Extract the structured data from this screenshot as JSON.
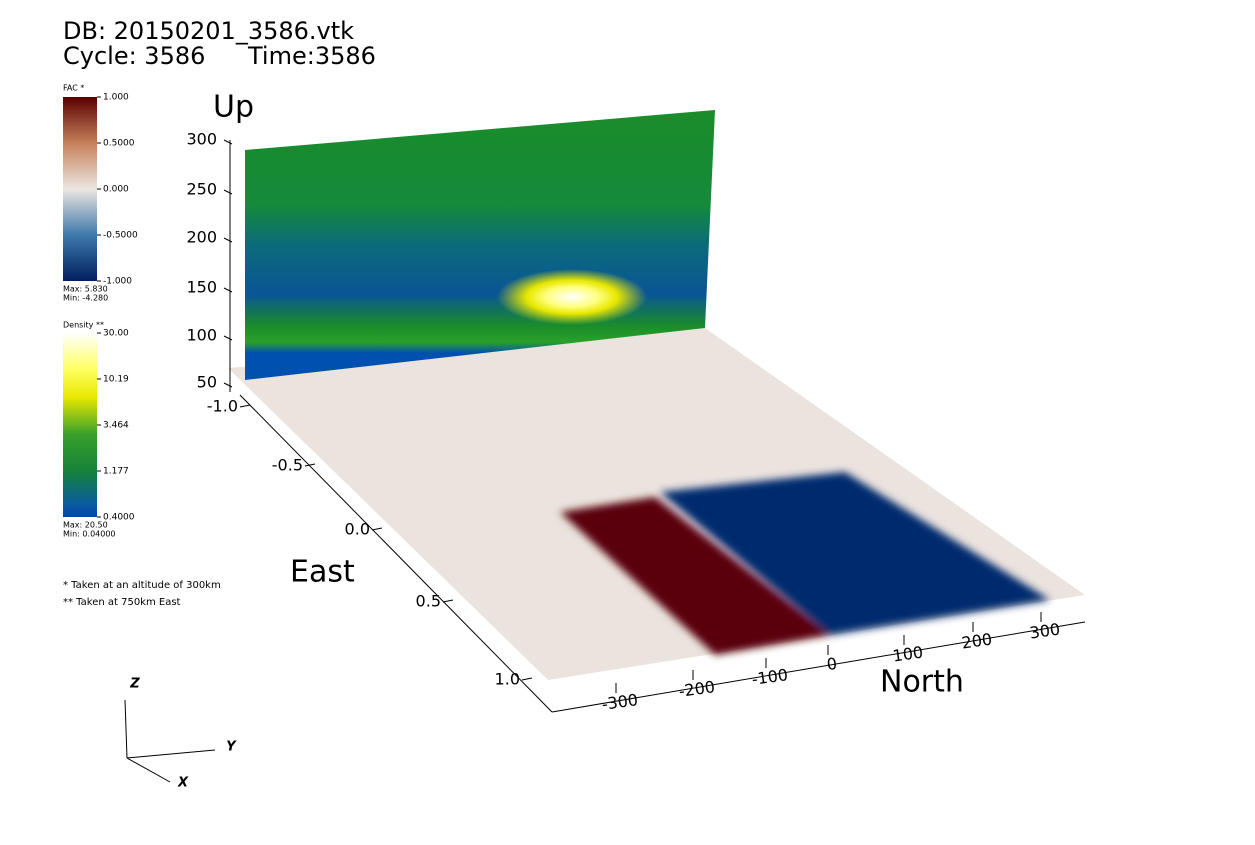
{
  "header": {
    "db": "DB: 20150201_3586.vtk",
    "cycle": "Cycle: 3586",
    "time": "Time:3586"
  },
  "fac_legend": {
    "title": "FAC *",
    "labels": [
      "1.000",
      "0.5000",
      "0.000",
      "-0.5000",
      "-1.000"
    ],
    "max": "Max:  5.830",
    "min": "Min:  -4.280"
  },
  "density_legend": {
    "title": "Density **",
    "labels": [
      "30.00",
      "10.19",
      "3.464",
      "1.177",
      "0.4000"
    ],
    "max": "Max:  20.50",
    "min": "Min:  0.04000"
  },
  "notes": [
    "* Taken at an altitude of 300km",
    "** Taken at 750km East"
  ],
  "up_axis": {
    "title": "Up",
    "ticks": [
      "300",
      "250",
      "200",
      "150",
      "100",
      "50"
    ]
  },
  "east_axis": {
    "title": "East",
    "ticks": [
      "-1.0",
      "-0.5",
      "0.0",
      "0.5",
      "1.0"
    ]
  },
  "north_axis": {
    "title": "North",
    "ticks": [
      "-300",
      "-200",
      "-100",
      "0",
      "100",
      "200",
      "300"
    ]
  },
  "triad": {
    "z": "Z",
    "y": "Y",
    "x": "X"
  }
}
